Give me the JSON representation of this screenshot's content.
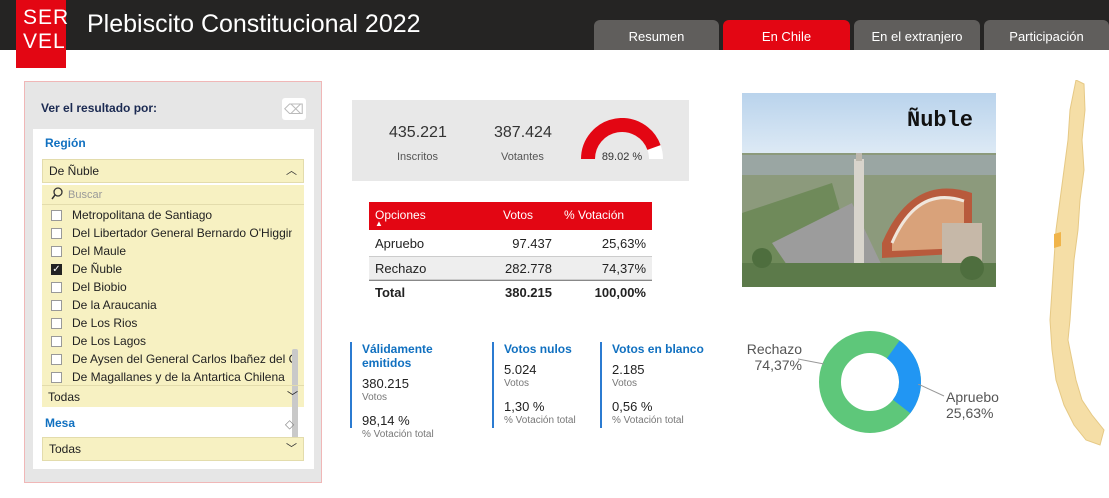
{
  "header": {
    "logo_line1": "SER",
    "logo_line2": "VEL",
    "title": "Plebiscito Constitucional 2022",
    "tabs": [
      {
        "label": "Resumen",
        "active": false
      },
      {
        "label": "En Chile",
        "active": true
      },
      {
        "label": "En el extranjero",
        "active": false
      },
      {
        "label": "Participación",
        "active": false
      }
    ]
  },
  "filter": {
    "heading": "Ver el resultado por:",
    "region_label": "Región",
    "region_selected": "De Ñuble",
    "search_placeholder": "Buscar",
    "region_options": [
      {
        "label": "Metropolitana de Santiago",
        "checked": false
      },
      {
        "label": "Del Libertador General Bernardo O'Higgins",
        "checked": false
      },
      {
        "label": "Del Maule",
        "checked": false
      },
      {
        "label": "De Ñuble",
        "checked": true
      },
      {
        "label": "Del Biobio",
        "checked": false
      },
      {
        "label": "De la Araucania",
        "checked": false
      },
      {
        "label": "De Los Rios",
        "checked": false
      },
      {
        "label": "De Los Lagos",
        "checked": false
      },
      {
        "label": "De Aysen del General Carlos Ibañez del C...",
        "checked": false
      },
      {
        "label": "De Magallanes y de la Antartica Chilena",
        "checked": false
      }
    ],
    "region_footer": "Todas",
    "mesa_label": "Mesa",
    "mesa_selected": "Todas"
  },
  "summary": {
    "inscritos": "435.221",
    "inscritos_label": "Inscritos",
    "votantes": "387.424",
    "votantes_label": "Votantes",
    "participacion": "89.02 %",
    "participacion_fraction": 0.8902
  },
  "results": {
    "headers": [
      "Opciones",
      "Votos",
      "% Votación"
    ],
    "rows": [
      {
        "opcion": "Apruebo",
        "votos": "97.437",
        "pct": "25,63%"
      },
      {
        "opcion": "Rechazo",
        "votos": "282.778",
        "pct": "74,37%"
      }
    ],
    "total": {
      "opcion": "Total",
      "votos": "380.215",
      "pct": "100,00%"
    }
  },
  "stats": [
    {
      "title": "Válidamente emitidos",
      "votos": "380.215",
      "votos_label": "Votos",
      "pct": "98,14 %",
      "pct_label": "% Votación total"
    },
    {
      "title": "Votos nulos",
      "votos": "5.024",
      "votos_label": "Votos",
      "pct": "1,30 %",
      "pct_label": "% Votación total"
    },
    {
      "title": "Votos en blanco",
      "votos": "2.185",
      "votos_label": "Votos",
      "pct": "0,56 %",
      "pct_label": "% Votación total"
    }
  ],
  "photo": {
    "title": "Ñuble"
  },
  "donut": {
    "rechazo_label": "Rechazo",
    "rechazo_pct": "74,37%",
    "apruebo_label": "Apruebo",
    "apruebo_pct": "25,63%",
    "rechazo_value": 74.37,
    "apruebo_value": 25.63,
    "rechazo_color": "#5ec77a",
    "apruebo_color": "#2196f3"
  },
  "colors": {
    "accent": "#e30613",
    "link_blue": "#1070c0",
    "map_fill": "#f5dea6",
    "map_highlight": "#f0b44a"
  }
}
